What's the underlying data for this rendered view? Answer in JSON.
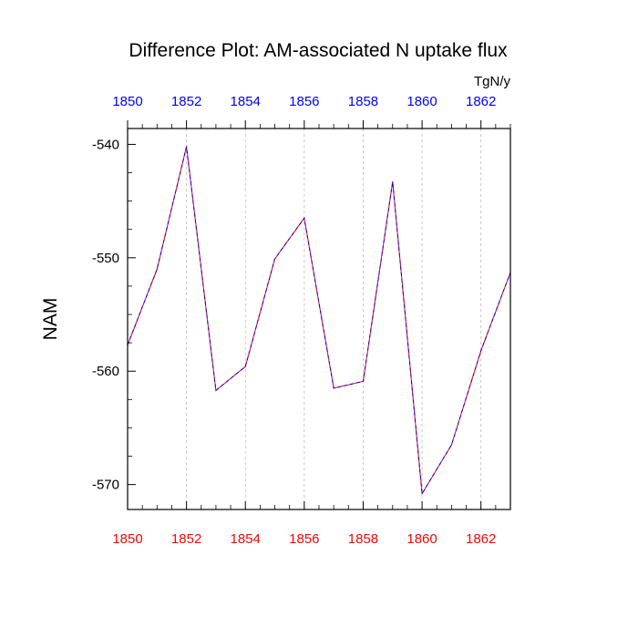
{
  "chart_data": {
    "type": "line",
    "title": "Difference Plot: AM-associated N uptake flux",
    "units_label": "TgN/y",
    "ylabel": "NAM",
    "xlabel": "",
    "xlim": [
      1850,
      1863
    ],
    "ylim": [
      -572.2,
      -538.6
    ],
    "x_ticks": [
      "1850",
      "1852",
      "1854",
      "1856",
      "1858",
      "1860",
      "1862"
    ],
    "top_x_ticks": [
      "1850",
      "1852",
      "1854",
      "1856",
      "1858",
      "1860",
      "1862"
    ],
    "y_ticks": [
      "-540",
      "-550",
      "-560",
      "-570"
    ],
    "grid": "vertical dashed at major x ticks",
    "series": [
      {
        "color": "#ff0000",
        "overlay_color": "#0000ff",
        "x": [
          1850,
          1851,
          1852,
          1853,
          1854,
          1855,
          1856,
          1857,
          1858,
          1859,
          1860,
          1861,
          1862,
          1863
        ],
        "values": [
          -557.7,
          -551.0,
          -540.2,
          -561.7,
          -559.6,
          -550.1,
          -546.5,
          -561.5,
          -560.9,
          -543.3,
          -570.8,
          -566.5,
          -558.2,
          -551.3
        ]
      }
    ],
    "colors": {
      "bottom_tick_labels": "#ff0000",
      "top_tick_labels": "#0000ff",
      "grid": "#bbbbbb"
    }
  }
}
